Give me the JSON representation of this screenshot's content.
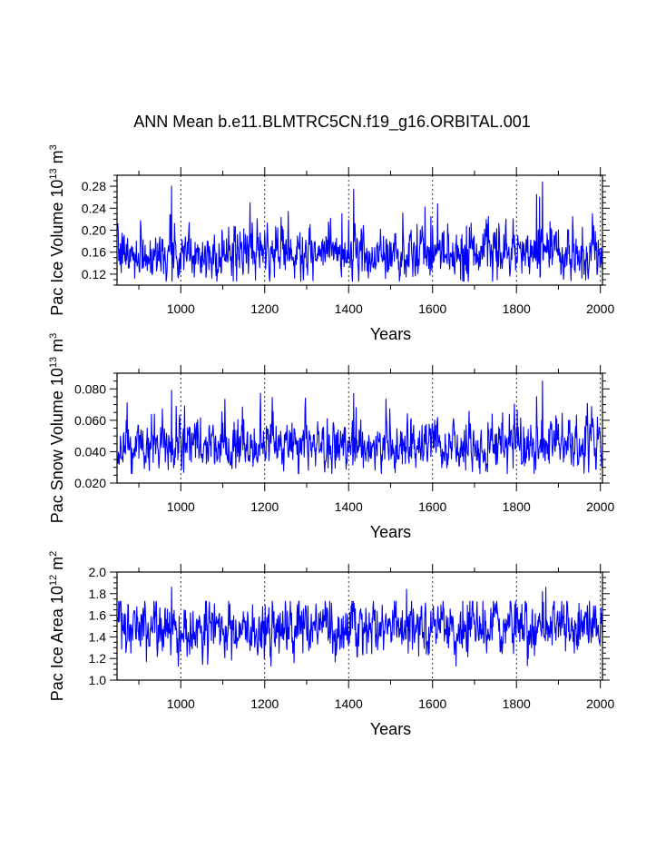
{
  "page_title": "ANN Mean b.e11.BLMTRC5CN.f19_g16.ORBITAL.001",
  "chart_data": [
    {
      "type": "line",
      "ylabel_prefix": "Pac Ice Volume 10",
      "ylabel_exp": "13",
      "ylabel_unit": " m",
      "ylabel_unit_exp": "3",
      "xlabel": "Years",
      "xlim": [
        848,
        2005
      ],
      "ylim": [
        0.1,
        0.3
      ],
      "x_ticks": [
        1000,
        1200,
        1400,
        1600,
        1800,
        2000
      ],
      "x_tick_labels": [
        "1000",
        "1200",
        "1400",
        "1600",
        "1800",
        "2000"
      ],
      "y_ticks": [
        0.12,
        0.16,
        0.2,
        0.24,
        0.28
      ],
      "y_tick_labels": [
        "0.12",
        "0.16",
        "0.20",
        "0.24",
        "0.28"
      ],
      "series_color": "#0000ff",
      "series": {
        "name": "Pac Ice Volume",
        "start_year": 850,
        "end_year": 2005,
        "mean": 0.155,
        "std": 0.022,
        "min": 0.107,
        "max": 0.288,
        "peaks": [
          [
            978,
            0.28
          ],
          [
            1412,
            0.275
          ],
          [
            1862,
            0.288
          ],
          [
            1848,
            0.265
          ],
          [
            1855,
            0.26
          ]
        ]
      }
    },
    {
      "type": "line",
      "ylabel_prefix": "Pac Snow Volume 10",
      "ylabel_exp": "13",
      "ylabel_unit": " m",
      "ylabel_unit_exp": "3",
      "xlabel": "Years",
      "xlim": [
        848,
        2005
      ],
      "ylim": [
        0.02,
        0.09
      ],
      "x_ticks": [
        1000,
        1200,
        1400,
        1600,
        1800,
        2000
      ],
      "x_tick_labels": [
        "1000",
        "1200",
        "1400",
        "1600",
        "1800",
        "2000"
      ],
      "y_ticks": [
        0.02,
        0.04,
        0.06,
        0.08
      ],
      "y_tick_labels": [
        "0.020",
        "0.040",
        "0.060",
        "0.080"
      ],
      "series_color": "#0000ff",
      "series": {
        "name": "Pac Snow Volume",
        "start_year": 850,
        "end_year": 2005,
        "mean": 0.043,
        "std": 0.0075,
        "min": 0.026,
        "max": 0.085,
        "peaks": [
          [
            978,
            0.079
          ],
          [
            1412,
            0.077
          ],
          [
            1862,
            0.085
          ],
          [
            1848,
            0.075
          ]
        ]
      }
    },
    {
      "type": "line",
      "ylabel_prefix": "Pac Ice Area 10",
      "ylabel_exp": "12",
      "ylabel_unit": " m",
      "ylabel_unit_exp": "2",
      "xlabel": "Years",
      "xlim": [
        848,
        2005
      ],
      "ylim": [
        1.0,
        2.0
      ],
      "x_ticks": [
        1000,
        1200,
        1400,
        1600,
        1800,
        2000
      ],
      "x_tick_labels": [
        "1000",
        "1200",
        "1400",
        "1600",
        "1800",
        "2000"
      ],
      "y_ticks": [
        1.0,
        1.2,
        1.4,
        1.6,
        1.8,
        2.0
      ],
      "y_tick_labels": [
        "1.0",
        "1.2",
        "1.4",
        "1.6",
        "1.8",
        "2.0"
      ],
      "series_color": "#0000ff",
      "series": {
        "name": "Pac Ice Area",
        "start_year": 850,
        "end_year": 2005,
        "mean": 1.47,
        "std": 0.12,
        "min": 1.13,
        "max": 1.86,
        "peaks": [
          [
            978,
            1.86
          ],
          [
            1870,
            1.86
          ],
          [
            1862,
            1.82
          ],
          [
            1538,
            1.84
          ]
        ]
      }
    }
  ]
}
